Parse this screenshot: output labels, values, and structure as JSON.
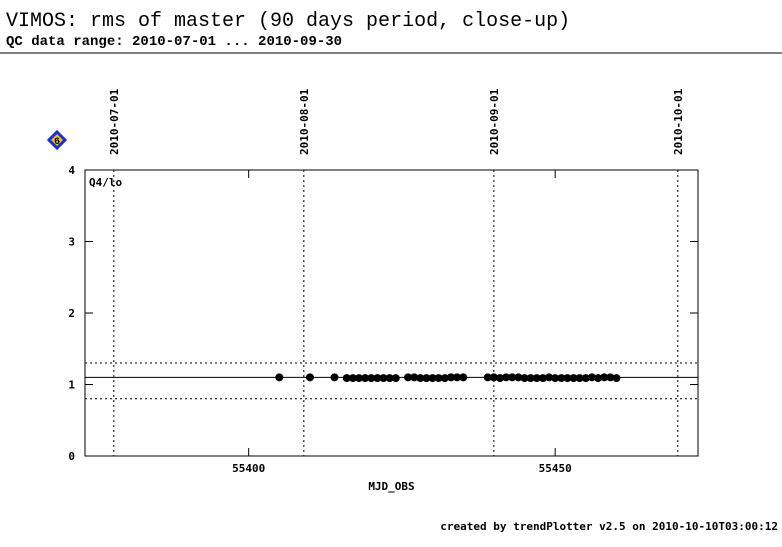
{
  "title": "VIMOS: rms of master (90 days period, close-up)",
  "subtitle": "QC data range: 2010-07-01 ... 2010-09-30",
  "badge": "6",
  "footer": "created by trendPlotter v2.5 on 2010-10-10T03:00:12",
  "chart_data": {
    "type": "scatter",
    "panel_label": "Q4/lo",
    "x_label": "MJD_OBS",
    "color": "#000000",
    "xlim": [
      55373.3,
      55473.3
    ],
    "ylim": [
      0,
      4
    ],
    "xticks": [
      55400,
      55450
    ],
    "yticks": [
      0,
      1,
      2,
      3,
      4
    ],
    "top_ticks": [
      {
        "value": 55378,
        "label": "2010-07-01"
      },
      {
        "value": 55409,
        "label": "2010-08-01"
      },
      {
        "value": 55440,
        "label": "2010-09-01"
      },
      {
        "value": 55470,
        "label": "2010-10-01"
      }
    ],
    "hlines": [
      {
        "value": 1.1,
        "style": "solid"
      },
      {
        "value": 1.3,
        "style": "dotted"
      },
      {
        "value": 0.8,
        "style": "dotted"
      }
    ],
    "x": [
      55405,
      55410,
      55414,
      55416,
      55417,
      55418,
      55419,
      55420,
      55421,
      55422,
      55423,
      55424,
      55426,
      55427,
      55428,
      55429,
      55430,
      55431,
      55432,
      55433,
      55434,
      55435,
      55439,
      55440,
      55441,
      55442,
      55443,
      55444,
      55445,
      55446,
      55447,
      55448,
      55449,
      55450,
      55451,
      55452,
      55453,
      55454,
      55455,
      55456,
      55457,
      55458,
      55459,
      55460
    ],
    "values": [
      1.1,
      1.1,
      1.1,
      1.09,
      1.09,
      1.09,
      1.09,
      1.09,
      1.09,
      1.09,
      1.09,
      1.09,
      1.1,
      1.1,
      1.09,
      1.09,
      1.09,
      1.09,
      1.09,
      1.1,
      1.1,
      1.1,
      1.1,
      1.1,
      1.09,
      1.1,
      1.1,
      1.1,
      1.09,
      1.09,
      1.09,
      1.09,
      1.1,
      1.09,
      1.09,
      1.09,
      1.09,
      1.09,
      1.09,
      1.1,
      1.09,
      1.1,
      1.1,
      1.09
    ]
  }
}
